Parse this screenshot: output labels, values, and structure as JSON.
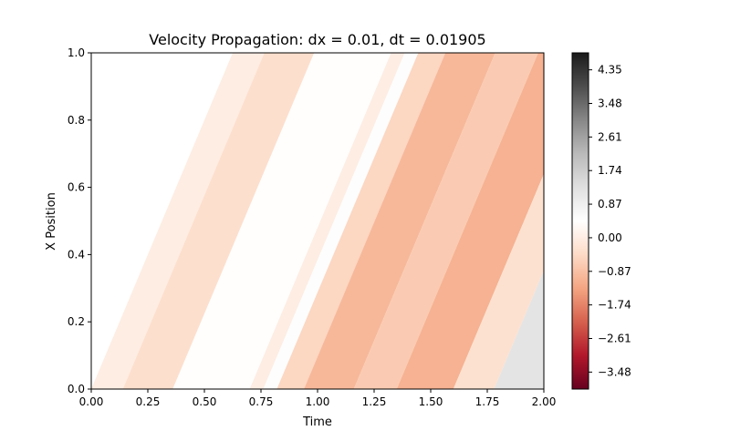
{
  "chart_data": {
    "type": "heatmap",
    "title": "Velocity Propagation: dx = 0.01, dt = 0.01905",
    "xlabel": "Time",
    "ylabel": "X Position",
    "xlim": [
      0,
      2
    ],
    "ylim": [
      0,
      1
    ],
    "x_ticks": [
      "0.00",
      "0.25",
      "0.50",
      "0.75",
      "1.00",
      "1.25",
      "1.50",
      "1.75",
      "2.00"
    ],
    "y_ticks": [
      "0.0",
      "0.2",
      "0.4",
      "0.6",
      "0.8",
      "1.0"
    ],
    "x_tick_values": [
      0,
      0.25,
      0.5,
      0.75,
      1.0,
      1.25,
      1.5,
      1.75,
      2.0
    ],
    "y_tick_values": [
      0,
      0.2,
      0.4,
      0.6,
      0.8,
      1.0
    ],
    "wave_speed": 1.6,
    "colorbar": {
      "colormap": "RdGy",
      "vmin": -3.92,
      "vmax": 4.79,
      "tick_labels": [
        "−3.48",
        "−2.61",
        "−1.74",
        "−0.87",
        "0.00",
        "0.87",
        "1.74",
        "2.61",
        "3.48",
        "4.35"
      ],
      "tick_values": [
        -3.48,
        -2.61,
        -1.74,
        -0.87,
        0.0,
        0.87,
        1.74,
        2.61,
        3.48,
        4.35
      ]
    },
    "bands": [
      {
        "t_start": 0.0,
        "t_end": 0.14,
        "value": 0.0
      },
      {
        "t_start": 0.14,
        "t_end": 0.36,
        "value": -0.35
      },
      {
        "t_start": 0.36,
        "t_end": 0.7,
        "value": 0.4
      },
      {
        "t_start": 0.7,
        "t_end": 0.76,
        "value": 0.0
      },
      {
        "t_start": 0.76,
        "t_end": 0.82,
        "value": 0.5
      },
      {
        "t_start": 0.82,
        "t_end": 0.94,
        "value": -0.5
      },
      {
        "t_start": 0.94,
        "t_end": 1.16,
        "value": -1.0
      },
      {
        "t_start": 1.16,
        "t_end": 1.35,
        "value": -0.7
      },
      {
        "t_start": 1.35,
        "t_end": 1.6,
        "value": -1.1
      },
      {
        "t_start": 1.6,
        "t_end": 1.78,
        "value": -0.3
      },
      {
        "t_start": 1.78,
        "t_end": 2.0,
        "value": 1.2
      }
    ]
  }
}
